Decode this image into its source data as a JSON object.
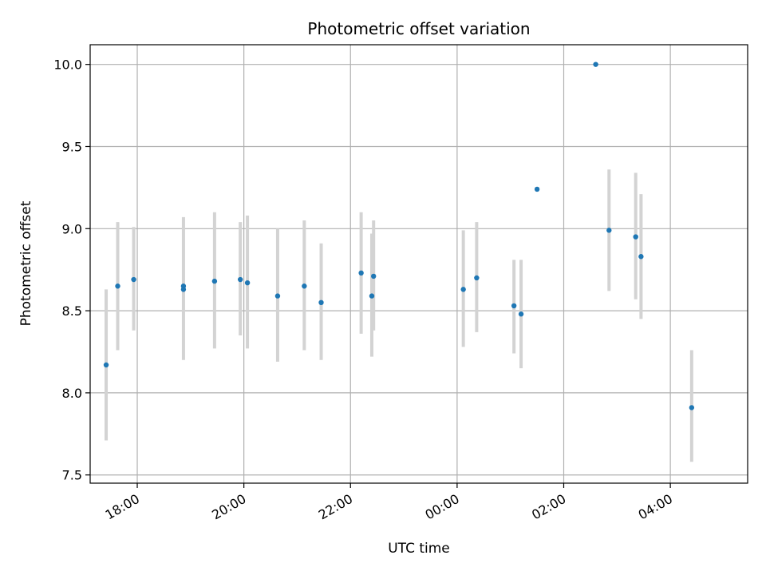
{
  "chart_data": {
    "type": "scatter",
    "title": "Photometric offset variation",
    "xlabel": "UTC time",
    "ylabel": "Photometric offset",
    "grid": true,
    "ylim": [
      7.45,
      10.12
    ],
    "xlim": [
      "17:07",
      "05:27"
    ],
    "xticks": [
      "18:00",
      "20:00",
      "22:00",
      "00:00",
      "02:00",
      "04:00"
    ],
    "yticks": [
      7.5,
      8.0,
      8.5,
      9.0,
      9.5,
      10.0
    ],
    "colors": {
      "points": "#1f77b4",
      "error_bars": "#d3d3d3",
      "grid": "#b0b0b0"
    },
    "points": [
      {
        "x": "17:25",
        "y": 8.17,
        "ylow": 7.71,
        "yhigh": 8.63
      },
      {
        "x": "17:38",
        "y": 8.65,
        "ylow": 8.26,
        "yhigh": 9.04
      },
      {
        "x": "17:56",
        "y": 8.69,
        "ylow": 8.38,
        "yhigh": 9.01
      },
      {
        "x": "18:52",
        "y": 8.65,
        "ylow": 8.2,
        "yhigh": 9.07
      },
      {
        "x": "18:52",
        "y": 8.63
      },
      {
        "x": "19:27",
        "y": 8.68,
        "ylow": 8.27,
        "yhigh": 9.1
      },
      {
        "x": "19:56",
        "y": 8.69,
        "ylow": 8.35,
        "yhigh": 9.04
      },
      {
        "x": "20:04",
        "y": 8.67,
        "ylow": 8.27,
        "yhigh": 9.08
      },
      {
        "x": "20:38",
        "y": 8.59,
        "ylow": 8.19,
        "yhigh": 9.0
      },
      {
        "x": "21:08",
        "y": 8.65,
        "ylow": 8.26,
        "yhigh": 9.05
      },
      {
        "x": "21:27",
        "y": 8.55,
        "ylow": 8.2,
        "yhigh": 8.91
      },
      {
        "x": "22:12",
        "y": 8.73,
        "ylow": 8.36,
        "yhigh": 9.1
      },
      {
        "x": "22:24",
        "y": 8.59,
        "ylow": 8.22,
        "yhigh": 8.97
      },
      {
        "x": "22:26",
        "y": 8.71,
        "ylow": 8.38,
        "yhigh": 9.05
      },
      {
        "x": "00:07",
        "y": 8.63,
        "ylow": 8.28,
        "yhigh": 8.99
      },
      {
        "x": "00:22",
        "y": 8.7,
        "ylow": 8.37,
        "yhigh": 9.04
      },
      {
        "x": "01:04",
        "y": 8.53,
        "ylow": 8.24,
        "yhigh": 8.81
      },
      {
        "x": "01:12",
        "y": 8.48,
        "ylow": 8.15,
        "yhigh": 8.81
      },
      {
        "x": "01:30",
        "y": 9.24
      },
      {
        "x": "02:36",
        "y": 10.0
      },
      {
        "x": "02:51",
        "y": 8.99,
        "ylow": 8.62,
        "yhigh": 9.36
      },
      {
        "x": "03:21",
        "y": 8.95,
        "ylow": 8.57,
        "yhigh": 9.34
      },
      {
        "x": "03:27",
        "y": 8.83,
        "ylow": 8.45,
        "yhigh": 9.21
      },
      {
        "x": "04:24",
        "y": 7.91,
        "ylow": 7.58,
        "yhigh": 8.26
      }
    ]
  }
}
